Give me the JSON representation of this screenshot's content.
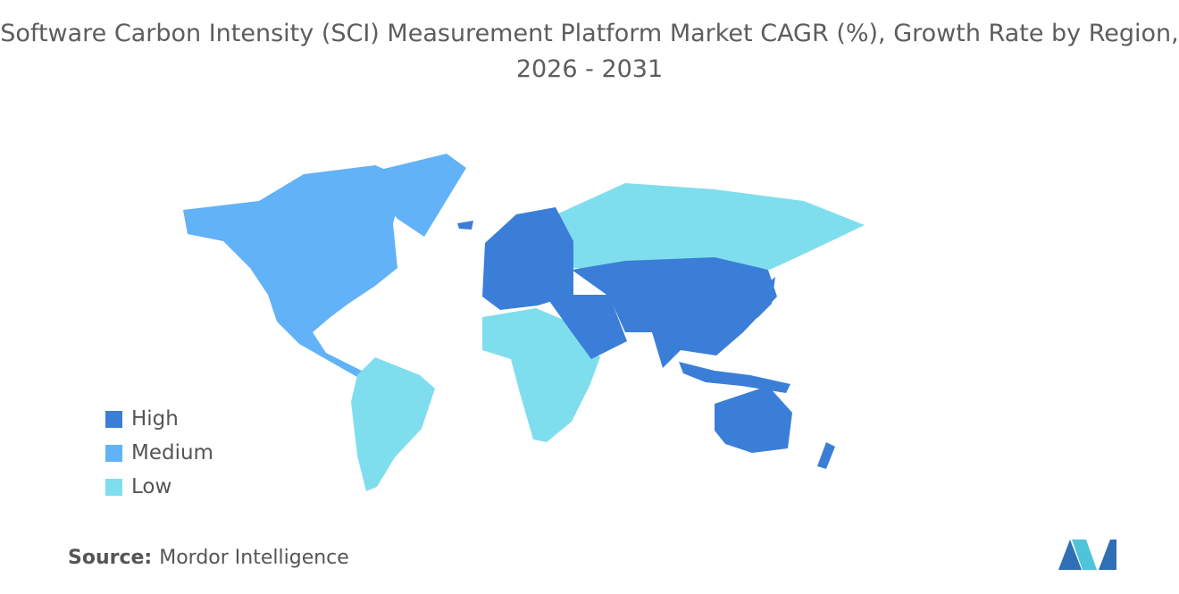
{
  "title": "Software Carbon Intensity (SCI) Measurement Platform Market CAGR (%), Growth Rate by Region, 2026 - 2031",
  "legend": [
    {
      "label": "High",
      "color": "#3b7ed8"
    },
    {
      "label": "Medium",
      "color": "#62b2f7"
    },
    {
      "label": "Low",
      "color": "#7fdeee"
    }
  ],
  "source": {
    "label": "Source:",
    "text": "Mordor Intelligence"
  }
}
